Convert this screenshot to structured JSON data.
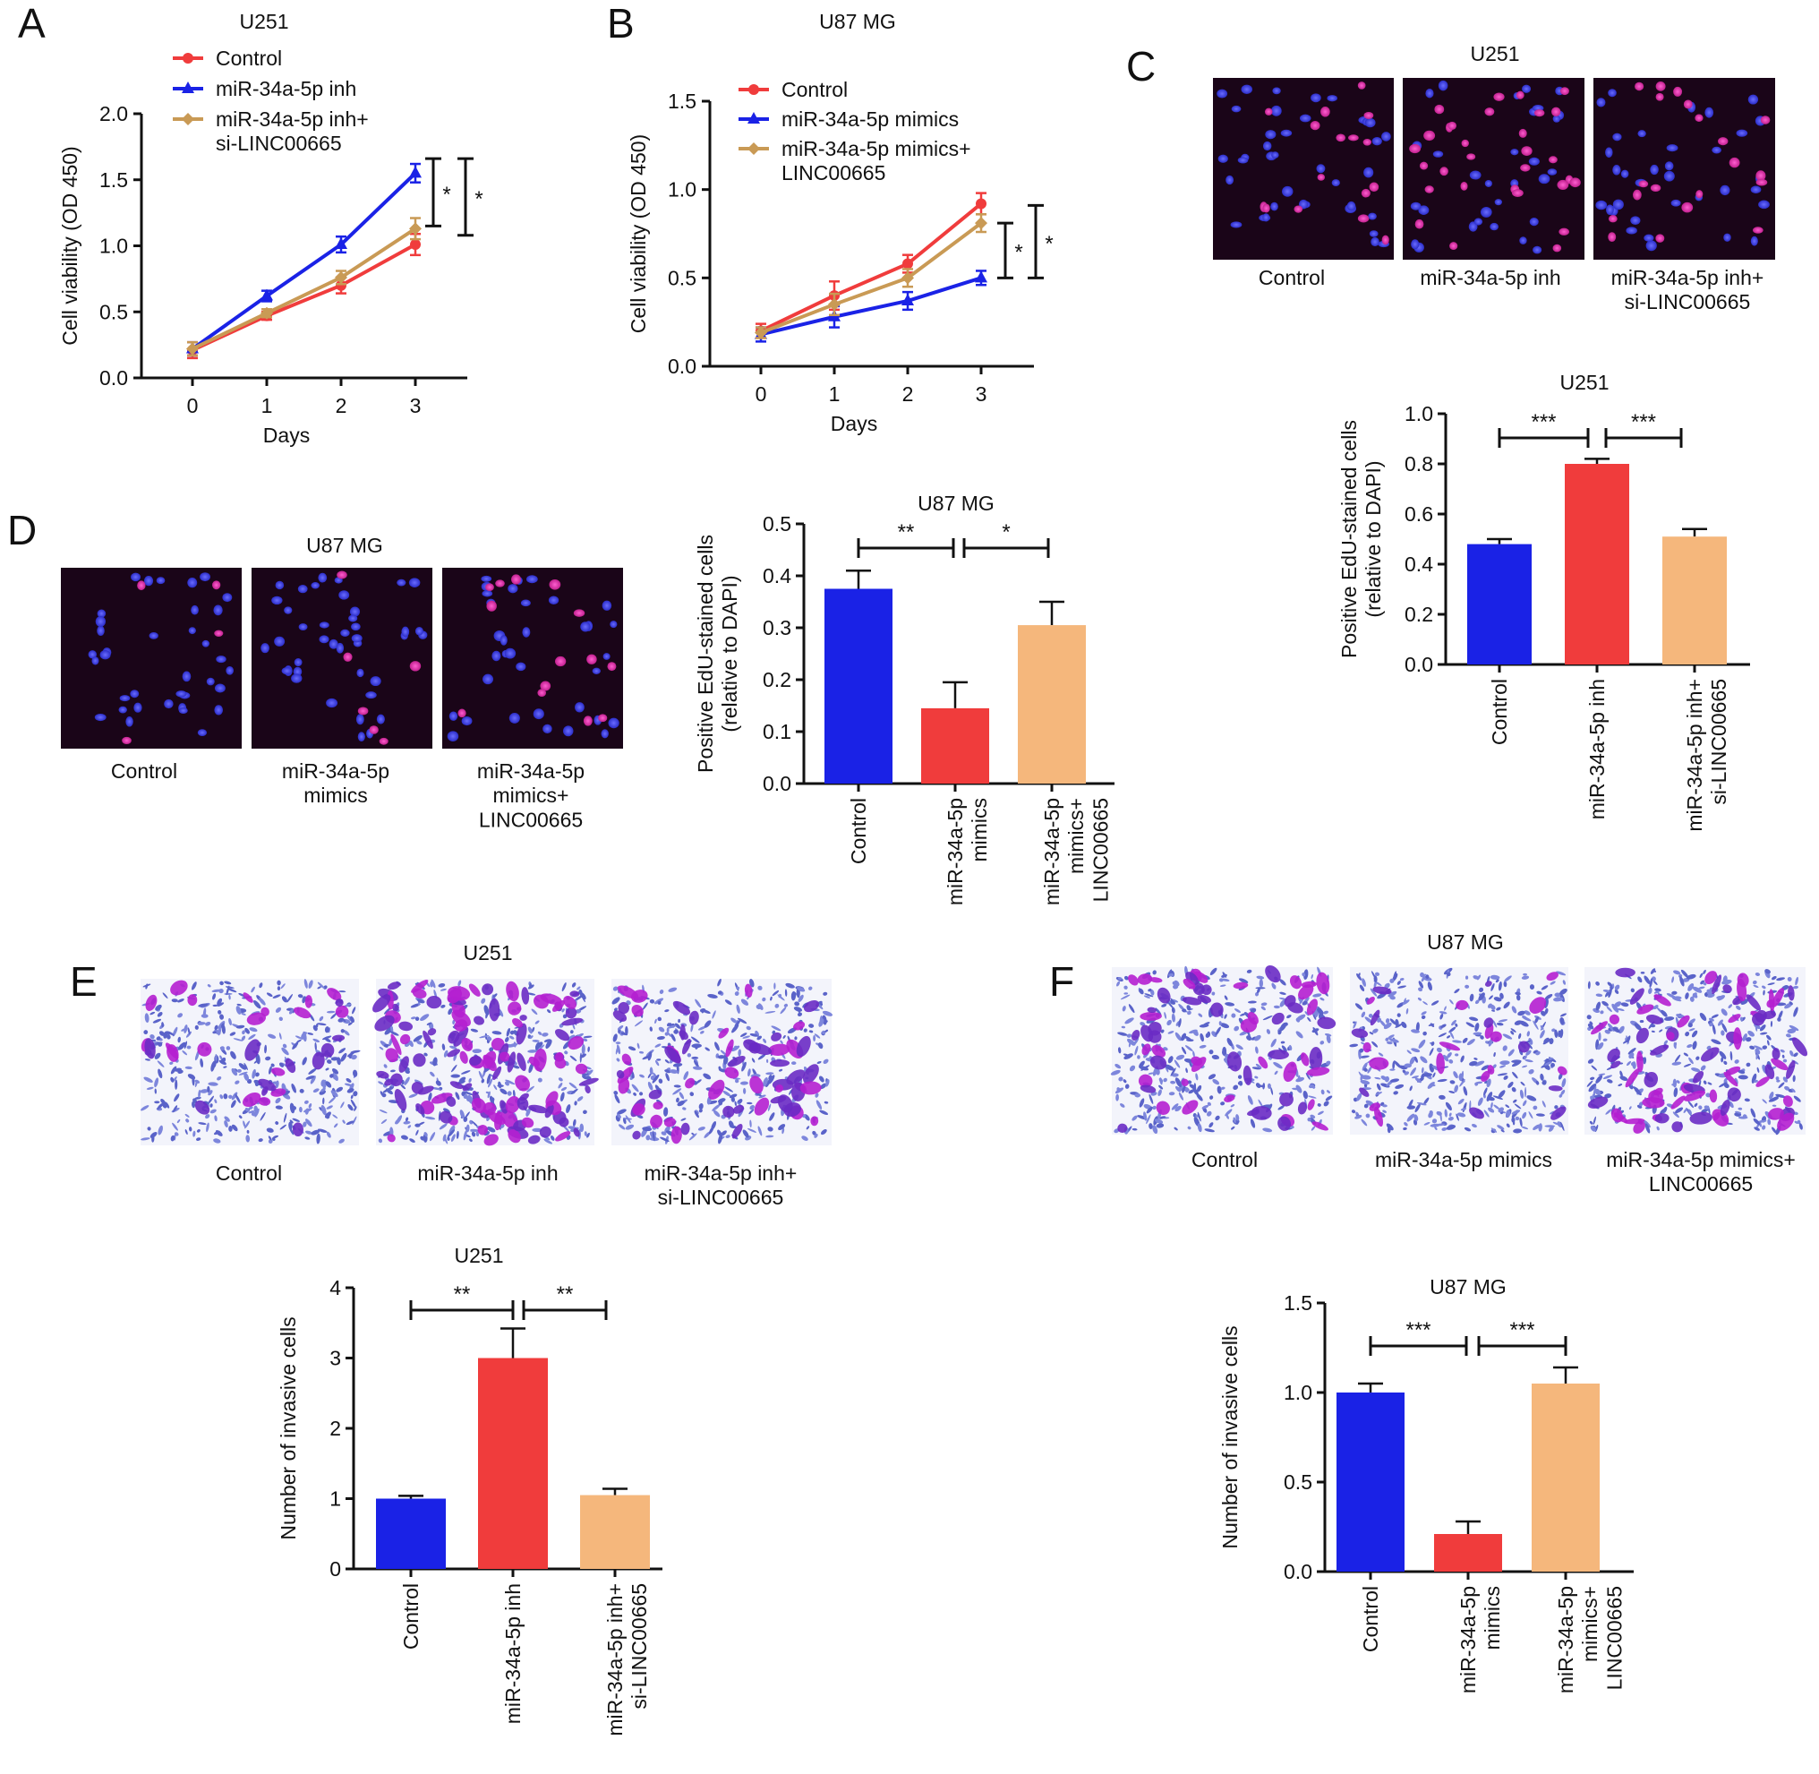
{
  "panels": {
    "A": {
      "letter": "A",
      "chart_data": {
        "type": "line",
        "title": "U251",
        "xlabel": "Days",
        "ylabel": "Cell viability (OD 450)",
        "x": [
          0,
          1,
          2,
          3
        ],
        "xticks": [
          "0",
          "1",
          "2",
          "3"
        ],
        "ylim": [
          0,
          2.0
        ],
        "yticks": [
          "0.0",
          "0.5",
          "1.0",
          "1.5",
          "2.0"
        ],
        "legend_position": "top",
        "series": [
          {
            "name": "Control",
            "color": "#f03c3c",
            "marker": "circle",
            "values": [
              0.21,
              0.47,
              0.7,
              1.01
            ],
            "err": [
              0.06,
              0.03,
              0.06,
              0.08
            ]
          },
          {
            "name": "miR-34a-5p inh",
            "color": "#1a22e6",
            "marker": "triangle",
            "values": [
              0.22,
              0.62,
              1.01,
              1.55
            ],
            "err": [
              0.05,
              0.04,
              0.06,
              0.07
            ]
          },
          {
            "name": "miR-34a-5p inh+\nsi-LINC00665",
            "color": "#c99a55",
            "marker": "diamond",
            "values": [
              0.22,
              0.49,
              0.76,
              1.13
            ],
            "err": [
              0.05,
              0.03,
              0.05,
              0.08
            ]
          }
        ],
        "significance": [
          "*",
          "*"
        ]
      }
    },
    "B": {
      "letter": "B",
      "chart_data": {
        "type": "line",
        "title": "U87 MG",
        "xlabel": "Days",
        "ylabel": "Cell viability (OD 450)",
        "x": [
          0,
          1,
          2,
          3
        ],
        "xticks": [
          "0",
          "1",
          "2",
          "3"
        ],
        "ylim": [
          0,
          1.5
        ],
        "yticks": [
          "0.0",
          "0.5",
          "1.0",
          "1.5"
        ],
        "legend_position": "top",
        "series": [
          {
            "name": "Control",
            "color": "#f03c3c",
            "marker": "circle",
            "values": [
              0.2,
              0.4,
              0.58,
              0.92
            ],
            "err": [
              0.04,
              0.08,
              0.05,
              0.06
            ]
          },
          {
            "name": "miR-34a-5p mimics",
            "color": "#1a22e6",
            "marker": "triangle",
            "values": [
              0.18,
              0.28,
              0.37,
              0.5
            ],
            "err": [
              0.04,
              0.06,
              0.05,
              0.04
            ]
          },
          {
            "name": "miR-34a-5p mimics+\nLINC00665",
            "color": "#c99a55",
            "marker": "diamond",
            "values": [
              0.19,
              0.35,
              0.5,
              0.81
            ],
            "err": [
              0.03,
              0.06,
              0.05,
              0.05
            ]
          }
        ],
        "significance": [
          "*",
          "*"
        ]
      }
    },
    "C": {
      "letter": "C",
      "image_title": "U251",
      "images": [
        {
          "label": "Control"
        },
        {
          "label": "miR-34a-5p inh"
        },
        {
          "label": "miR-34a-5p inh+\nsi-LINC00665"
        }
      ],
      "chart_data": {
        "type": "bar",
        "title": "U251",
        "ylabel": "Positive EdU-stained cells\n(relative to DAPI)",
        "ylim": [
          0,
          1.0
        ],
        "yticks": [
          "0.0",
          "0.2",
          "0.4",
          "0.6",
          "0.8",
          "1.0"
        ],
        "categories": [
          "Control",
          "miR-34a-5p inh",
          "miR-34a-5p inh+\nsi-LINC00665"
        ],
        "values": [
          0.48,
          0.8,
          0.51
        ],
        "err": [
          0.02,
          0.02,
          0.03
        ],
        "colors": [
          "#1a22e6",
          "#f03c3c",
          "#f5b77c"
        ],
        "significance": [
          "***",
          "***"
        ]
      }
    },
    "D": {
      "letter": "D",
      "image_title": "U87 MG",
      "images": [
        {
          "label": "Control"
        },
        {
          "label": "miR-34a-5p\nmimics"
        },
        {
          "label": "miR-34a-5p\nmimics+\nLINC00665"
        }
      ],
      "chart_data": {
        "type": "bar",
        "title": "U87 MG",
        "ylabel": "Positive EdU-stained cells\n(relative to DAPI)",
        "ylim": [
          0,
          0.5
        ],
        "yticks": [
          "0.0",
          "0.1",
          "0.2",
          "0.3",
          "0.4",
          "0.5"
        ],
        "categories": [
          "Control",
          "miR-34a-5p\nmimics",
          "miR-34a-5p\nmimics+\nLINC00665"
        ],
        "values": [
          0.375,
          0.145,
          0.305
        ],
        "err": [
          0.035,
          0.05,
          0.045
        ],
        "colors": [
          "#1a22e6",
          "#f03c3c",
          "#f5b77c"
        ],
        "significance": [
          "**",
          "*"
        ]
      }
    },
    "E": {
      "letter": "E",
      "image_title": "U251",
      "images": [
        {
          "label": "Control"
        },
        {
          "label": "miR-34a-5p inh"
        },
        {
          "label": "miR-34a-5p inh+\nsi-LINC00665"
        }
      ],
      "chart_data": {
        "type": "bar",
        "title": "U251",
        "ylabel": "Number of invasive cells",
        "ylim": [
          0,
          4
        ],
        "yticks": [
          "0",
          "1",
          "2",
          "3",
          "4"
        ],
        "categories": [
          "Control",
          "miR-34a-5p inh",
          "miR-34a-5p inh+\nsi-LINC00665"
        ],
        "values": [
          1.0,
          3.0,
          1.05
        ],
        "err": [
          0.04,
          0.42,
          0.09
        ],
        "colors": [
          "#1a22e6",
          "#f03c3c",
          "#f5b77c"
        ],
        "significance": [
          "**",
          "**"
        ]
      }
    },
    "F": {
      "letter": "F",
      "image_title": "U87 MG",
      "images": [
        {
          "label": "Control"
        },
        {
          "label": "miR-34a-5p mimics"
        },
        {
          "label": "miR-34a-5p mimics+\nLINC00665"
        }
      ],
      "chart_data": {
        "type": "bar",
        "title": "U87 MG",
        "ylabel": "Number of invasive cells",
        "ylim": [
          0,
          1.5
        ],
        "yticks": [
          "0.0",
          "0.5",
          "1.0",
          "1.5"
        ],
        "categories": [
          "Control",
          "miR-34a-5p\nmimics",
          "miR-34a-5p\nmimics+\nLINC00665"
        ],
        "values": [
          1.0,
          0.21,
          1.05
        ],
        "err": [
          0.05,
          0.07,
          0.09
        ],
        "colors": [
          "#1a22e6",
          "#f03c3c",
          "#f5b77c"
        ],
        "significance": [
          "***",
          "***"
        ]
      }
    }
  }
}
